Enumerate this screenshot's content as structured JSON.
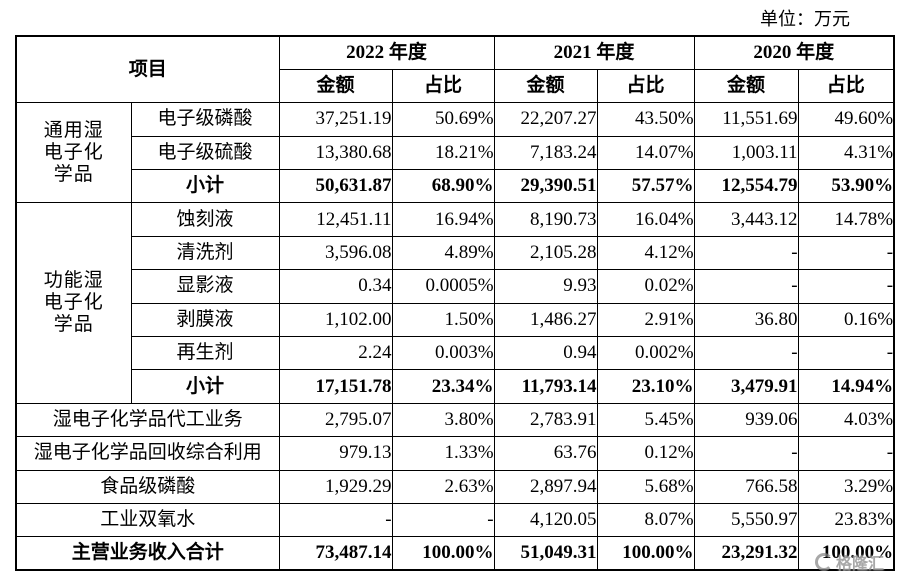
{
  "unit_label": "单位：万元",
  "header": {
    "item": "项目",
    "years": [
      "2022 年度",
      "2021 年度",
      "2020 年度"
    ],
    "amount": "金额",
    "share": "占比"
  },
  "groups": [
    {
      "category": "通用湿电子化学品",
      "rows": [
        {
          "name": "电子级磷酸",
          "values": [
            "37,251.19",
            "50.69%",
            "22,207.27",
            "43.50%",
            "11,551.69",
            "49.60%"
          ]
        },
        {
          "name": "电子级硫酸",
          "values": [
            "13,380.68",
            "18.21%",
            "7,183.24",
            "14.07%",
            "1,003.11",
            "4.31%"
          ]
        },
        {
          "name": "小计",
          "values": [
            "50,631.87",
            "68.90%",
            "29,390.51",
            "57.57%",
            "12,554.79",
            "53.90%"
          ]
        }
      ]
    },
    {
      "category": "功能湿电子化学品",
      "rows": [
        {
          "name": "蚀刻液",
          "values": [
            "12,451.11",
            "16.94%",
            "8,190.73",
            "16.04%",
            "3,443.12",
            "14.78%"
          ]
        },
        {
          "name": "清洗剂",
          "values": [
            "3,596.08",
            "4.89%",
            "2,105.28",
            "4.12%",
            "-",
            "-"
          ]
        },
        {
          "name": "显影液",
          "values": [
            "0.34",
            "0.0005%",
            "9.93",
            "0.02%",
            "-",
            "-"
          ]
        },
        {
          "name": "剥膜液",
          "values": [
            "1,102.00",
            "1.50%",
            "1,486.27",
            "2.91%",
            "36.80",
            "0.16%"
          ]
        },
        {
          "name": "再生剂",
          "values": [
            "2.24",
            "0.003%",
            "0.94",
            "0.002%",
            "-",
            "-"
          ]
        },
        {
          "name": "小计",
          "values": [
            "17,151.78",
            "23.34%",
            "11,793.14",
            "23.10%",
            "3,479.91",
            "14.94%"
          ]
        }
      ]
    }
  ],
  "other_rows": [
    {
      "name": "湿电子化学品代工业务",
      "values": [
        "2,795.07",
        "3.80%",
        "2,783.91",
        "5.45%",
        "939.06",
        "4.03%"
      ]
    },
    {
      "name": "湿电子化学品回收综合利用",
      "values": [
        "979.13",
        "1.33%",
        "63.76",
        "0.12%",
        "-",
        "-"
      ]
    },
    {
      "name": "食品级磷酸",
      "values": [
        "1,929.29",
        "2.63%",
        "2,897.94",
        "5.68%",
        "766.58",
        "3.29%"
      ]
    },
    {
      "name": "工业双氧水",
      "values": [
        "-",
        "-",
        "4,120.05",
        "8.07%",
        "5,550.97",
        "23.83%"
      ]
    }
  ],
  "total": {
    "name": "主营业务收入合计",
    "values": [
      "73,487.14",
      "100.00%",
      "51,049.31",
      "100.00%",
      "23,291.32",
      "100.00%"
    ]
  },
  "watermark": {
    "text": "格隆汇"
  }
}
